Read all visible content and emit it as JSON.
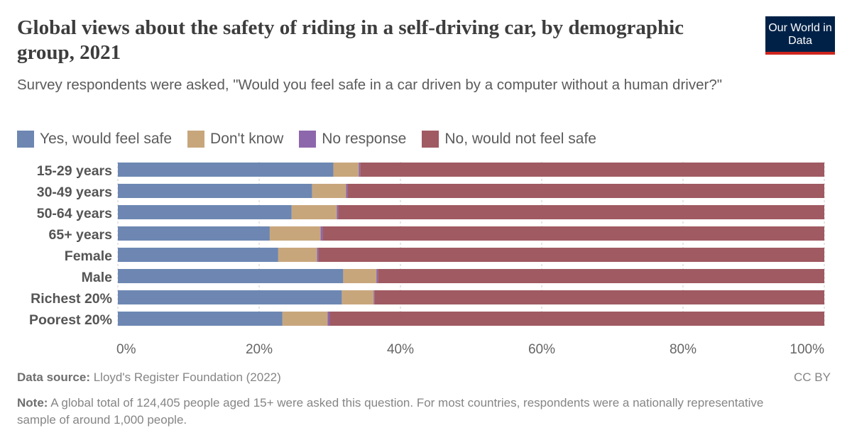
{
  "header": {
    "title": "Global views about the safety of riding in a self-driving car, by demographic group, 2021",
    "subtitle": "Survey respondents were asked, \"Would you feel safe in a car driven by a computer without a human driver?\"",
    "logo": "Our World in Data"
  },
  "footer": {
    "source_label": "Data source:",
    "source": "Lloyd's Register Foundation (2022)",
    "license": "CC BY",
    "note_label": "Note:",
    "note": "A global total of 124,405 people aged 15+ were asked this question. For most countries, respondents were a nationally representative sample of around 1,000 people."
  },
  "chart_data": {
    "type": "bar",
    "orientation": "horizontal",
    "stacked": true,
    "categories": [
      "15-29 years",
      "30-49 years",
      "50-64 years",
      "65+ years",
      "Female",
      "Male",
      "Richest 20%",
      "Poorest 20%"
    ],
    "series": [
      {
        "name": "Yes, would feel safe",
        "color": "#6d87b2",
        "values": [
          30.5,
          27.5,
          24.6,
          21.5,
          22.7,
          31.9,
          31.7,
          23.3
        ]
      },
      {
        "name": "Don't know",
        "color": "#c8a67c",
        "values": [
          3.6,
          4.8,
          6.4,
          7.2,
          5.5,
          4.7,
          4.5,
          6.4
        ]
      },
      {
        "name": "No response",
        "color": "#8d67ac",
        "values": [
          0.2,
          0.2,
          0.2,
          0.3,
          0.2,
          0.2,
          0.1,
          0.3
        ]
      },
      {
        "name": "No, would not feel safe",
        "color": "#a05a62",
        "values": [
          65.7,
          67.5,
          68.8,
          71.0,
          71.6,
          63.2,
          63.7,
          70.0
        ]
      }
    ],
    "xlim": [
      0,
      100
    ],
    "xticks": [
      "0%",
      "20%",
      "40%",
      "60%",
      "80%",
      "100%"
    ],
    "legend_position": "top-left",
    "grid": "vertical dashed"
  }
}
